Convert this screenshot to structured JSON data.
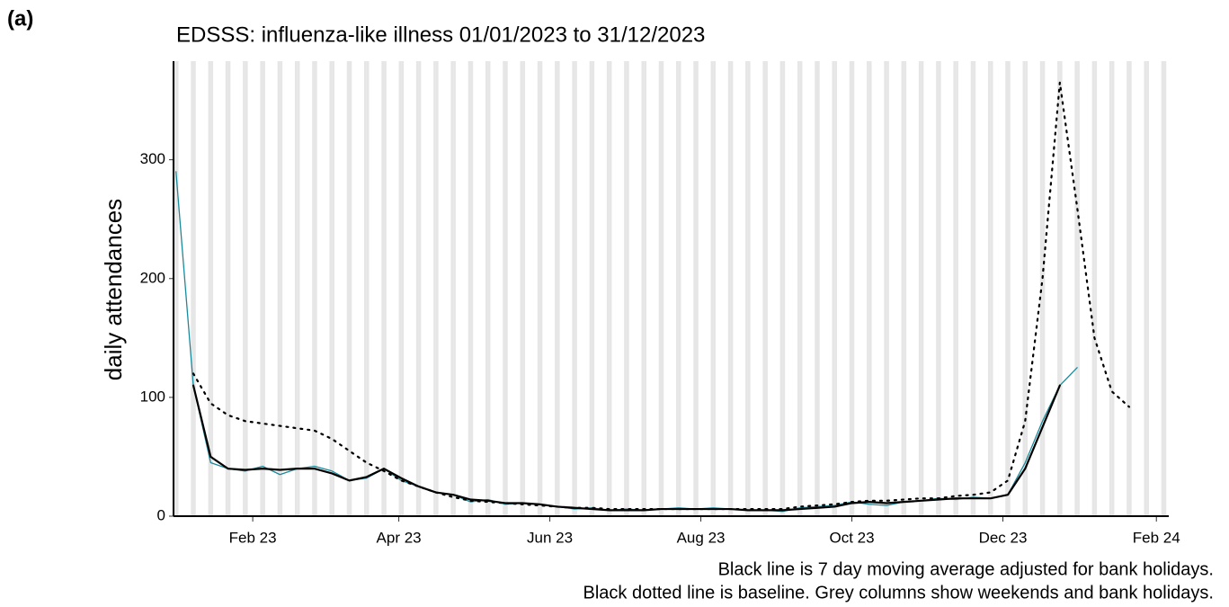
{
  "chart_data": {
    "type": "line",
    "panel_label": "(a)",
    "title": "EDSSS: influenza-like illness 01/01/2023 to 31/12/2023",
    "ylabel": "daily attendances",
    "caption": [
      "Black line is 7 day moving average adjusted for bank holidays.",
      "Black dotted line is baseline. Grey columns show weekends and bank holidays."
    ],
    "shade_weekends": true,
    "shade_color": "#e6e6e6",
    "xlim": [
      "2022-12-31",
      "2024-02-06"
    ],
    "xticks": [
      {
        "value": "2023-02-01",
        "label": "Feb 23"
      },
      {
        "value": "2023-04-01",
        "label": "Apr 23"
      },
      {
        "value": "2023-06-01",
        "label": "Jun 23"
      },
      {
        "value": "2023-08-01",
        "label": "Aug 23"
      },
      {
        "value": "2023-10-01",
        "label": "Oct 23"
      },
      {
        "value": "2023-12-01",
        "label": "Dec 23"
      },
      {
        "value": "2024-02-01",
        "label": "Feb 24"
      }
    ],
    "ylim": [
      0,
      383
    ],
    "yticks": [
      0,
      100,
      200,
      300
    ],
    "x": [
      "2023-01-01",
      "2023-01-08",
      "2023-01-15",
      "2023-01-22",
      "2023-01-29",
      "2023-02-05",
      "2023-02-12",
      "2023-02-19",
      "2023-02-26",
      "2023-03-05",
      "2023-03-12",
      "2023-03-19",
      "2023-03-26",
      "2023-04-02",
      "2023-04-09",
      "2023-04-16",
      "2023-04-23",
      "2023-04-30",
      "2023-05-07",
      "2023-05-14",
      "2023-05-21",
      "2023-05-28",
      "2023-06-04",
      "2023-06-11",
      "2023-06-18",
      "2023-06-25",
      "2023-07-02",
      "2023-07-09",
      "2023-07-16",
      "2023-07-23",
      "2023-07-30",
      "2023-08-06",
      "2023-08-13",
      "2023-08-20",
      "2023-08-27",
      "2023-09-03",
      "2023-09-10",
      "2023-09-17",
      "2023-09-24",
      "2023-10-01",
      "2023-10-08",
      "2023-10-15",
      "2023-10-22",
      "2023-10-29",
      "2023-11-05",
      "2023-11-12",
      "2023-11-19",
      "2023-11-26",
      "2023-12-03",
      "2023-12-10",
      "2023-12-17",
      "2023-12-24",
      "2023-12-31",
      "2024-01-07",
      "2024-01-14",
      "2024-01-21",
      "2024-01-28"
    ],
    "series": [
      {
        "name": "daily",
        "color": "#1a8a9b",
        "width": 1.3,
        "dash": "none",
        "values": [
          290,
          110,
          45,
          40,
          38,
          42,
          35,
          40,
          42,
          38,
          30,
          32,
          40,
          30,
          25,
          20,
          18,
          12,
          14,
          10,
          11,
          10,
          8,
          6,
          7,
          5,
          6,
          5,
          6,
          7,
          6,
          7,
          6,
          5,
          5,
          4,
          7,
          8,
          9,
          12,
          10,
          9,
          12,
          13,
          15,
          14,
          16,
          15,
          18,
          45,
          80,
          110,
          125,
          null,
          null,
          null,
          null
        ]
      },
      {
        "name": "moving average",
        "color": "#000000",
        "width": 2.2,
        "dash": "none",
        "values": [
          null,
          110,
          50,
          40,
          39,
          40,
          39,
          40,
          40,
          36,
          30,
          33,
          40,
          32,
          25,
          20,
          18,
          14,
          13,
          11,
          11,
          10,
          8,
          7,
          6,
          5,
          5,
          5,
          6,
          6,
          6,
          6,
          6,
          5,
          5,
          5,
          6,
          7,
          8,
          11,
          12,
          11,
          12,
          13,
          14,
          15,
          15,
          15,
          18,
          40,
          75,
          110,
          null,
          null,
          null,
          null,
          null
        ]
      },
      {
        "name": "baseline",
        "color": "#000000",
        "width": 2.2,
        "dash": "2 6",
        "values": [
          null,
          120,
          95,
          85,
          80,
          78,
          76,
          74,
          72,
          65,
          55,
          45,
          38,
          30,
          25,
          20,
          16,
          13,
          12,
          11,
          10,
          9,
          8,
          7,
          7,
          6,
          6,
          6,
          6,
          6,
          6,
          6,
          6,
          6,
          6,
          6,
          8,
          9,
          10,
          12,
          13,
          13,
          14,
          15,
          15,
          17,
          18,
          20,
          30,
          80,
          200,
          365,
          260,
          150,
          105,
          92,
          null
        ]
      }
    ]
  }
}
